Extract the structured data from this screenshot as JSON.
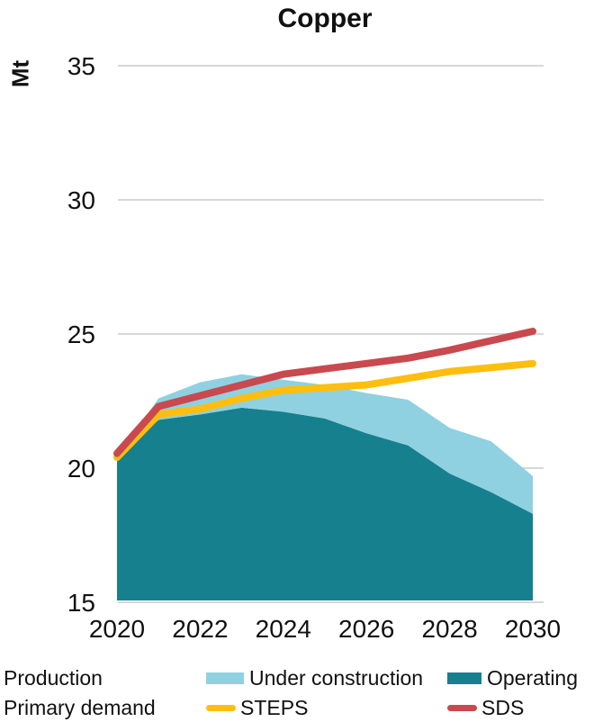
{
  "title": "Copper",
  "y_axis_unit": "Mt",
  "colors": {
    "operating": "#16808E",
    "under_construction": "#8FD1E0",
    "steps": "#FDBE10",
    "sds": "#C9494F",
    "gridline": "#CCCCCC",
    "text": "#111111"
  },
  "legend": {
    "row1_label": "Production",
    "row2_label": "Primary demand",
    "under_construction": "Under construction",
    "operating": "Operating",
    "steps": "STEPS",
    "sds": "SDS"
  },
  "chart_data": {
    "type": "area",
    "title": "Copper",
    "ylabel": "Mt",
    "ylim": [
      15,
      35
    ],
    "yticks": [
      15,
      20,
      25,
      30,
      35
    ],
    "xticks": [
      2020,
      2022,
      2024,
      2026,
      2028,
      2030
    ],
    "x": [
      2020,
      2021,
      2022,
      2023,
      2024,
      2025,
      2026,
      2027,
      2028,
      2029,
      2030
    ],
    "grid": "horizontal",
    "legend_position": "bottom",
    "series": [
      {
        "name": "Operating",
        "type": "area",
        "stack": 1,
        "values": [
          20.4,
          21.8,
          22.0,
          22.25,
          22.1,
          21.85,
          21.3,
          20.85,
          19.8,
          19.1,
          18.3
        ]
      },
      {
        "name": "Under construction",
        "type": "area",
        "stack": 1,
        "values": [
          0.05,
          0.8,
          1.2,
          1.25,
          1.2,
          1.25,
          1.5,
          1.7,
          1.7,
          1.9,
          1.4
        ]
      },
      {
        "name": "STEPS",
        "type": "line",
        "values": [
          20.4,
          22.0,
          22.2,
          22.6,
          22.9,
          23.0,
          23.1,
          23.35,
          23.6,
          23.75,
          23.9
        ]
      },
      {
        "name": "SDS",
        "type": "line",
        "values": [
          20.55,
          22.3,
          22.7,
          23.1,
          23.5,
          23.7,
          23.9,
          24.1,
          24.4,
          24.75,
          25.1
        ]
      }
    ]
  }
}
